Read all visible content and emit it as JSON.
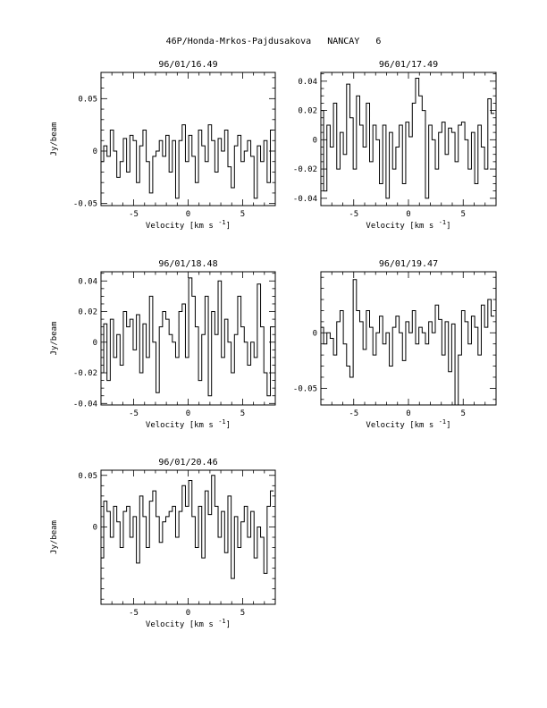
{
  "page": {
    "header": "46P/Honda-Mrkos-Pajdusakova",
    "observatory": "NANCAY",
    "page_number": "6"
  },
  "chart_data": [
    {
      "type": "line",
      "title": "96/01/16.49",
      "xlabel": "Velocity [km s",
      "xlabel_sup": "-1",
      "xlabel_end": "]",
      "ylabel": "Jy/beam",
      "xlim": [
        -8,
        8
      ],
      "ylim": [
        -0.052,
        0.075
      ],
      "xticks": [
        -5,
        0,
        5
      ],
      "yticks": [
        -0.05,
        0,
        0.05
      ],
      "ytick_labels": [
        "-0.05",
        "0",
        "0.05"
      ],
      "step": true,
      "x": [
        -7.9,
        -7.6,
        -7.3,
        -7.0,
        -6.7,
        -6.4,
        -6.1,
        -5.8,
        -5.5,
        -5.2,
        -4.9,
        -4.6,
        -4.3,
        -4.0,
        -3.7,
        -3.4,
        -3.1,
        -2.8,
        -2.5,
        -2.2,
        -1.9,
        -1.6,
        -1.3,
        -1.0,
        -0.7,
        -0.4,
        -0.1,
        0.2,
        0.5,
        0.8,
        1.1,
        1.4,
        1.7,
        2.0,
        2.3,
        2.6,
        2.9,
        3.2,
        3.5,
        3.8,
        4.1,
        4.4,
        4.7,
        5.0,
        5.3,
        5.6,
        5.9,
        6.2,
        6.5,
        6.8,
        7.1,
        7.4,
        7.7
      ],
      "values": [
        -0.01,
        0.005,
        -0.005,
        0.02,
        0.0,
        -0.025,
        -0.01,
        0.012,
        -0.02,
        0.015,
        0.01,
        -0.03,
        0.005,
        0.02,
        -0.01,
        -0.04,
        -0.005,
        0.0,
        0.01,
        -0.005,
        0.015,
        -0.02,
        0.01,
        -0.045,
        0.01,
        0.025,
        -0.01,
        0.015,
        -0.005,
        -0.03,
        0.02,
        0.005,
        -0.01,
        0.025,
        0.01,
        -0.02,
        0.012,
        0.0,
        0.02,
        -0.015,
        -0.035,
        0.005,
        0.015,
        -0.01,
        0.0,
        0.01,
        -0.005,
        -0.045,
        0.005,
        -0.01,
        0.01,
        -0.03,
        0.02
      ]
    },
    {
      "type": "line",
      "title": "96/01/17.49",
      "xlabel": "Velocity [km s",
      "xlabel_sup": "-1",
      "xlabel_end": "]",
      "ylabel": "",
      "xlim": [
        -8,
        8
      ],
      "ylim": [
        -0.045,
        0.046
      ],
      "xticks": [
        -5,
        0,
        5
      ],
      "yticks": [
        -0.04,
        -0.02,
        0,
        0.02,
        0.04
      ],
      "ytick_labels": [
        "-0.04",
        "-0.02",
        "0",
        "0.02",
        "0.04"
      ],
      "step": true,
      "x": [
        -7.9,
        -7.6,
        -7.3,
        -7.0,
        -6.7,
        -6.4,
        -6.1,
        -5.8,
        -5.5,
        -5.2,
        -4.9,
        -4.6,
        -4.3,
        -4.0,
        -3.7,
        -3.4,
        -3.1,
        -2.8,
        -2.5,
        -2.2,
        -1.9,
        -1.6,
        -1.3,
        -1.0,
        -0.7,
        -0.4,
        -0.1,
        0.2,
        0.5,
        0.8,
        1.1,
        1.4,
        1.7,
        2.0,
        2.3,
        2.6,
        2.9,
        3.2,
        3.5,
        3.8,
        4.1,
        4.4,
        4.7,
        5.0,
        5.3,
        5.6,
        5.9,
        6.2,
        6.5,
        6.8,
        7.1,
        7.4,
        7.7
      ],
      "values": [
        0.02,
        -0.035,
        0.01,
        -0.005,
        0.025,
        -0.02,
        0.005,
        -0.01,
        0.038,
        0.015,
        -0.02,
        0.03,
        0.01,
        -0.005,
        0.025,
        -0.015,
        0.01,
        0.0,
        -0.03,
        0.01,
        -0.04,
        0.005,
        -0.02,
        -0.005,
        0.01,
        -0.03,
        0.012,
        0.002,
        0.025,
        0.042,
        0.03,
        0.02,
        -0.04,
        0.01,
        0.0,
        -0.02,
        0.005,
        0.012,
        -0.01,
        0.008,
        0.005,
        -0.015,
        0.01,
        0.012,
        0.0,
        -0.02,
        0.005,
        -0.03,
        0.01,
        -0.005,
        -0.02,
        0.028,
        0.018
      ]
    },
    {
      "type": "line",
      "title": "96/01/18.48",
      "xlabel": "Velocity [km s",
      "xlabel_sup": "-1",
      "xlabel_end": "]",
      "ylabel": "Jy/beam",
      "xlim": [
        -8,
        8
      ],
      "ylim": [
        -0.041,
        0.046
      ],
      "xticks": [
        -5,
        0,
        5
      ],
      "yticks": [
        -0.04,
        -0.02,
        0,
        0.02,
        0.04
      ],
      "ytick_labels": [
        "-0.04",
        "-0.02",
        "0",
        "0.02",
        "0.04"
      ],
      "step": true,
      "x": [
        -7.9,
        -7.6,
        -7.3,
        -7.0,
        -6.7,
        -6.4,
        -6.1,
        -5.8,
        -5.5,
        -5.2,
        -4.9,
        -4.6,
        -4.3,
        -4.0,
        -3.7,
        -3.4,
        -3.1,
        -2.8,
        -2.5,
        -2.2,
        -1.9,
        -1.6,
        -1.3,
        -1.0,
        -0.7,
        -0.4,
        -0.1,
        0.2,
        0.5,
        0.8,
        1.1,
        1.4,
        1.7,
        2.0,
        2.3,
        2.6,
        2.9,
        3.2,
        3.5,
        3.8,
        4.1,
        4.4,
        4.7,
        5.0,
        5.3,
        5.6,
        5.9,
        6.2,
        6.5,
        6.8,
        7.1,
        7.4,
        7.7
      ],
      "values": [
        -0.02,
        0.012,
        -0.025,
        0.015,
        -0.01,
        0.005,
        -0.015,
        0.02,
        0.01,
        0.015,
        -0.005,
        0.018,
        -0.02,
        0.012,
        -0.01,
        0.03,
        0.0,
        -0.033,
        0.01,
        0.02,
        0.015,
        0.005,
        0.0,
        -0.01,
        0.02,
        0.025,
        -0.01,
        0.042,
        0.03,
        0.01,
        -0.025,
        0.005,
        0.03,
        -0.035,
        0.02,
        0.005,
        0.04,
        -0.01,
        0.015,
        0.0,
        -0.02,
        0.005,
        0.03,
        0.01,
        0.0,
        -0.015,
        0.0,
        -0.01,
        0.038,
        0.01,
        -0.02,
        -0.035,
        0.01
      ]
    },
    {
      "type": "line",
      "title": "96/01/19.47",
      "xlabel": "Velocity [km s",
      "xlabel_sup": "-1",
      "xlabel_end": "]",
      "ylabel": "",
      "xlim": [
        -8,
        8
      ],
      "ylim": [
        -0.065,
        0.055
      ],
      "xticks": [
        -5,
        0,
        5
      ],
      "yticks": [
        -0.05,
        0
      ],
      "ytick_labels": [
        "-0.05",
        "0"
      ],
      "step": true,
      "x": [
        -7.9,
        -7.6,
        -7.3,
        -7.0,
        -6.7,
        -6.4,
        -6.1,
        -5.8,
        -5.5,
        -5.2,
        -4.9,
        -4.6,
        -4.3,
        -4.0,
        -3.7,
        -3.4,
        -3.1,
        -2.8,
        -2.5,
        -2.2,
        -1.9,
        -1.6,
        -1.3,
        -1.0,
        -0.7,
        -0.4,
        -0.1,
        0.2,
        0.5,
        0.8,
        1.1,
        1.4,
        1.7,
        2.0,
        2.3,
        2.6,
        2.9,
        3.2,
        3.5,
        3.8,
        4.1,
        4.4,
        4.7,
        5.0,
        5.3,
        5.6,
        5.9,
        6.2,
        6.5,
        6.8,
        7.1,
        7.4,
        7.7
      ],
      "values": [
        0.005,
        -0.01,
        0.0,
        -0.005,
        -0.02,
        0.01,
        0.02,
        -0.01,
        -0.03,
        -0.04,
        0.048,
        0.02,
        0.01,
        -0.015,
        0.02,
        0.005,
        -0.02,
        0.0,
        0.015,
        -0.01,
        0.0,
        -0.03,
        0.005,
        0.015,
        0.0,
        -0.025,
        0.01,
        0.0,
        0.02,
        -0.01,
        0.005,
        0.0,
        -0.01,
        0.01,
        0.0,
        0.025,
        0.012,
        -0.02,
        0.01,
        -0.035,
        0.008,
        -0.065,
        -0.02,
        0.02,
        0.01,
        -0.01,
        0.015,
        0.005,
        -0.02,
        0.025,
        0.005,
        0.03,
        0.015
      ]
    },
    {
      "type": "line",
      "title": "96/01/20.46",
      "xlabel": "Velocity [km s",
      "xlabel_sup": "-1",
      "xlabel_end": "]",
      "ylabel": "Jy/beam",
      "xlim": [
        -8,
        8
      ],
      "ylim": [
        -0.075,
        0.055
      ],
      "xticks": [
        -5,
        0,
        5
      ],
      "yticks": [
        0,
        0.05
      ],
      "ytick_labels": [
        "0",
        "0.05"
      ],
      "step": true,
      "x": [
        -7.9,
        -7.6,
        -7.3,
        -7.0,
        -6.7,
        -6.4,
        -6.1,
        -5.8,
        -5.5,
        -5.2,
        -4.9,
        -4.6,
        -4.3,
        -4.0,
        -3.7,
        -3.4,
        -3.1,
        -2.8,
        -2.5,
        -2.2,
        -1.9,
        -1.6,
        -1.3,
        -1.0,
        -0.7,
        -0.4,
        -0.1,
        0.2,
        0.5,
        0.8,
        1.1,
        1.4,
        1.7,
        2.0,
        2.3,
        2.6,
        2.9,
        3.2,
        3.5,
        3.8,
        4.1,
        4.4,
        4.7,
        5.0,
        5.3,
        5.6,
        5.9,
        6.2,
        6.5,
        6.8,
        7.1,
        7.4,
        7.7
      ],
      "values": [
        -0.03,
        0.025,
        0.015,
        -0.01,
        0.02,
        0.005,
        -0.02,
        0.015,
        0.02,
        -0.01,
        0.01,
        -0.035,
        0.03,
        0.01,
        -0.02,
        0.025,
        0.035,
        0.01,
        -0.015,
        0.005,
        0.01,
        0.015,
        0.02,
        -0.01,
        0.015,
        0.04,
        0.02,
        0.045,
        0.01,
        -0.02,
        0.02,
        -0.03,
        0.035,
        0.012,
        0.05,
        0.02,
        -0.01,
        0.015,
        -0.025,
        0.03,
        -0.05,
        0.01,
        -0.02,
        0.005,
        0.02,
        -0.01,
        0.015,
        -0.03,
        0.0,
        -0.01,
        -0.045,
        0.02,
        0.035
      ]
    }
  ]
}
